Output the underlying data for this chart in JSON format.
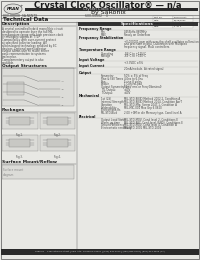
{
  "page_bg": "#e8e8e4",
  "white_bg": "#f0f0ec",
  "title_text": "Crystal Clock Oscillator® — n/a",
  "subtitle_text": "by SaRonix",
  "logo_text": "PRAN",
  "part_number": "800-00008  SA-NEN7X",
  "model_number": "600-00002    0",
  "section_header": "Technical Data",
  "header_bar_color": "#2a2a2a",
  "footer_text": "SaRonix    1490 Intrepid Street | Palo Alto, California 94301 | (650) 842-0000 | (650) 856-6078 | (800) 624-9555 (CA)",
  "desc_title": "Description",
  "desc_lines": [
    "A crystal controlled hybrid monolithic circuit",
    "designed to operate over the full MIL",
    "temperature range with high precision clock",
    "or multiplex signals at TTL/",
    "Compatibility with over-current protect",
    "at specified collector loading. All",
    "silicon-based technology enabled by EC",
    "devices. Optional open collector",
    "output allows user to relate either",
    "posit representation to systems",
    "preference.",
    "Complementary output is also",
    "available."
  ],
  "output_struct_title": "Output Structures",
  "packages_title": "Packages",
  "surface_title": "Surface Mount/Reflow",
  "spec_sections": [
    {
      "header": "Frequency Range",
      "rows": [
        [
          "Min",
          "0.455kHz-860MHz"
        ],
        [
          "MAX",
          "Ready on Orderflow"
        ]
      ]
    },
    {
      "header": "Frequency Stabilization",
      "rows": [
        [
          "",
          "+0.000001 ppm with over-the-shelf oscillator calibration"
        ],
        [
          "",
          "and precision crystal. Calibration with Multiplex"
        ],
        [
          "",
          "frequency signal. Multi controllers."
        ]
      ]
    },
    {
      "header": "Temperature Range",
      "rows": [
        [
          "Operating",
          "-55°C to +125°C"
        ],
        [
          "Storage",
          "-65°C to +150°C"
        ]
      ]
    },
    {
      "header": "Input Voltage",
      "rows": [
        [
          "",
          "+3.3VDC ±5%"
        ]
      ]
    },
    {
      "header": "Input Current",
      "rows": [
        [
          "",
          "20mA/module. At rated signal"
        ]
      ]
    },
    {
      "header": "Output",
      "rows": [
        [
          "Symmetry",
          "50% ± 5% of Freq"
        ],
        [
          "Rise & Fall Times",
          "4.0ns to 6.0ns"
        ],
        [
          "Rise",
          "5 rise 8 sides"
        ],
        [
          "Enable",
          "1 Control-pad"
        ],
        [
          "Output Symmetry(±)",
          "50mV rms or Freq (Nominal)"
        ],
        [
          "TTL Output",
          "±10V"
        ],
        [
          "T Output",
          "±10V"
        ]
      ]
    },
    {
      "header": "Mechanical",
      "rows": [
        [
          "1st (2S)",
          "MIL-STD-883D Method 2002.2, Condition A"
        ],
        [
          "Internal Strength",
          "MIL-STD-883D Method 2014, Condition AorT"
        ],
        [
          "Vibration",
          "MIL-STD-Mfg, Screw 2047.1, Condition A"
        ],
        [
          "Solderability",
          "MIL-MIC-001 Mxx Grp 6 0620"
        ],
        [
          "Electrostatic-Rs",
          ""
        ],
        [
          "MIL-STD-Blvd",
          "2.00 +0M in die Mercury type, Cond level A"
        ]
      ]
    },
    {
      "header": "Electrical",
      "rows": [
        [
          "Output Load Static",
          "MIL-STD-MOV, Cond level 2, Conditions E"
        ],
        [
          "Warm-up time",
          "MIL-STD-887, Cond level (SND), Conditions E"
        ],
        [
          "Ground Efficiency",
          "MIL-STD-MOV, Cond level 4, Condition A"
        ],
        [
          "Electrostatic sensitivity",
          "MIL-STD-1001 MIL-STD-1004"
        ]
      ]
    }
  ],
  "table_labels": [
    "Part No.",
    "Revision RA",
    "Date:",
    "03/25/2002",
    "Drawn:",
    "",
    "Page:",
    "1  of  1"
  ],
  "text_color": "#1a1a1a",
  "text_gray": "#444444",
  "line_color": "#555555",
  "faded_color": "#888888",
  "box_bg": "#dcdcd8"
}
